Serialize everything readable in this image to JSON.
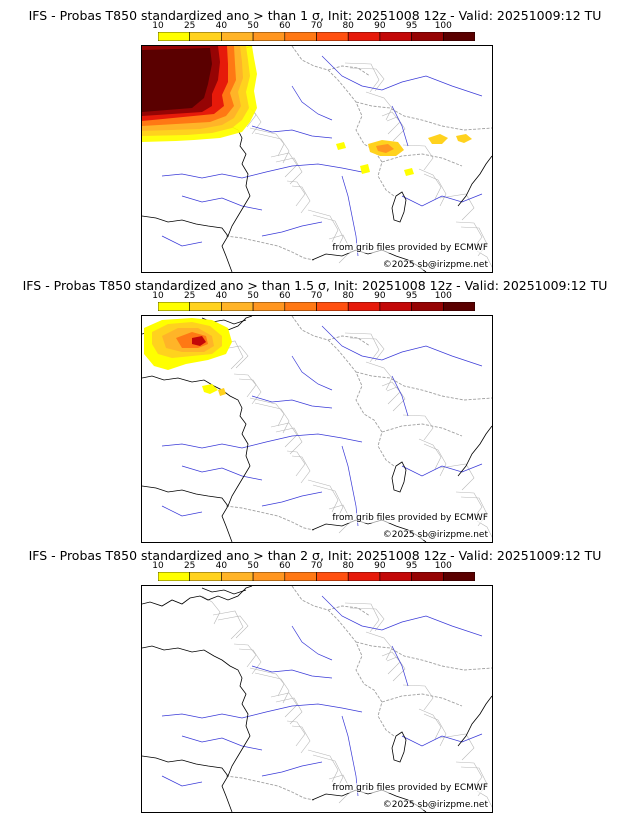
{
  "panels": [
    {
      "title": "IFS - Probas T850  standardized ano > than 1 σ, Init: 20251008 12z - Valid: 20251009:12 TU"
    },
    {
      "title": "IFS - Probas T850  standardized ano > than 1.5 σ, Init: 20251008 12z - Valid: 20251009:12 TU"
    },
    {
      "title": "IFS - Probas T850  standardized ano > than 2 σ, Init: 20251008 12z - Valid: 20251009:12 TU"
    }
  ],
  "colorbar": {
    "ticks": [
      "10",
      "25",
      "40",
      "50",
      "60",
      "70",
      "80",
      "90",
      "95",
      "100"
    ],
    "colors": [
      "#ffff00",
      "#ffd21e",
      "#ffb428",
      "#ff9620",
      "#ff7814",
      "#ff5010",
      "#e61a0a",
      "#c30808",
      "#960404",
      "#5a0000"
    ]
  },
  "credits": {
    "source": "from grib files provided by ECMWF",
    "copyright": "©2025 sb@irizpme.net"
  }
}
